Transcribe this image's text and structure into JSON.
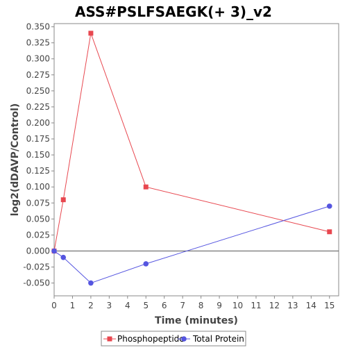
{
  "chart_data": {
    "type": "line",
    "title": "ASS#PSLFSAEGK(+ 3)_v2",
    "xlabel": "Time (minutes)",
    "ylabel": "log2(dDAVP/Control)",
    "xlim": [
      0,
      15.5
    ],
    "ylim": [
      -0.07,
      0.355
    ],
    "x_ticks": [
      0,
      1,
      2,
      3,
      4,
      5,
      6,
      7,
      8,
      9,
      10,
      11,
      12,
      13,
      14,
      15
    ],
    "y_ticks": [
      -0.05,
      -0.025,
      0.0,
      0.025,
      0.05,
      0.075,
      0.1,
      0.125,
      0.15,
      0.175,
      0.2,
      0.225,
      0.25,
      0.275,
      0.3,
      0.325,
      0.35
    ],
    "x_tick_labels": [
      "0",
      "1",
      "2",
      "3",
      "4",
      "5",
      "6",
      "7",
      "8",
      "9",
      "10",
      "11",
      "12",
      "13",
      "14",
      "15"
    ],
    "y_tick_labels": [
      "-0.050",
      "-0.025",
      "0.000",
      "0.025",
      "0.050",
      "0.075",
      "0.100",
      "0.125",
      "0.150",
      "0.175",
      "0.200",
      "0.225",
      "0.250",
      "0.275",
      "0.300",
      "0.325",
      "0.350"
    ],
    "zero_line": true,
    "grid": false,
    "legend_position": "bottom",
    "series": [
      {
        "name": "Phosphopeptide",
        "color": "#e8474f",
        "marker": "square",
        "x": [
          0,
          0.5,
          2,
          5,
          15
        ],
        "y": [
          0.0,
          0.08,
          0.34,
          0.1,
          0.03
        ]
      },
      {
        "name": "Total Protein",
        "color": "#5555e0",
        "marker": "circle",
        "x": [
          0,
          0.5,
          2,
          5,
          15
        ],
        "y": [
          0.0,
          -0.01,
          -0.05,
          -0.02,
          0.07
        ]
      }
    ]
  }
}
